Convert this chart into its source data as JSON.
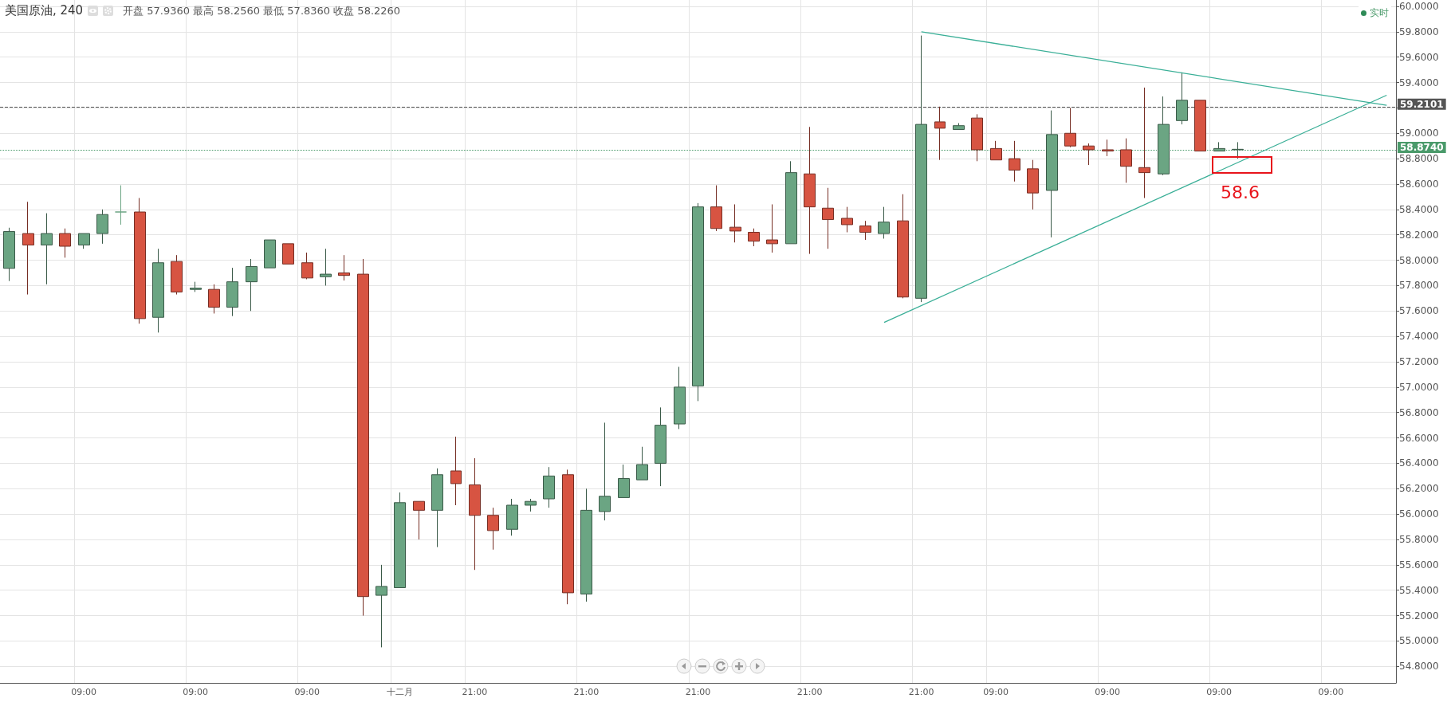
{
  "chart_data": {
    "type": "candlestick",
    "title": "美国原油, 240",
    "subtitle": "开盘 57.9360 最高 58.2560 最低 57.8360 收盘 58.2260",
    "categories": [
      null,
      null,
      null,
      null,
      "09:00",
      null,
      null,
      null,
      null,
      null,
      "09:00",
      null,
      null,
      null,
      null,
      null,
      "09:00",
      null,
      null,
      null,
      null,
      "十二月",
      null,
      null,
      null,
      "21:00",
      null,
      null,
      null,
      null,
      null,
      "21:00",
      null,
      null,
      null,
      null,
      null,
      "21:00",
      null,
      null,
      null,
      null,
      null,
      "21:00",
      null,
      null,
      null,
      null,
      null,
      "21:00",
      null,
      null,
      null,
      "09:00",
      null,
      null,
      null,
      null,
      null,
      "09:00",
      null,
      null,
      null,
      null,
      null,
      "09:00",
      null,
      null,
      null,
      null,
      null,
      "09:00",
      null,
      null,
      null
    ],
    "ohlc": [
      [
        57.936,
        58.256,
        57.836,
        58.226
      ],
      [
        58.21,
        58.46,
        57.73,
        58.12
      ],
      [
        58.12,
        58.37,
        57.81,
        58.21
      ],
      [
        58.21,
        58.25,
        58.02,
        58.11
      ],
      [
        58.12,
        58.21,
        58.09,
        58.21
      ],
      [
        58.21,
        58.4,
        58.13,
        58.36
      ],
      [
        58.38,
        58.59,
        58.28,
        58.38
      ],
      [
        58.38,
        58.49,
        57.5,
        57.54
      ],
      [
        57.55,
        58.09,
        57.43,
        57.98
      ],
      [
        57.99,
        58.04,
        57.73,
        57.75
      ],
      [
        57.77,
        57.83,
        57.75,
        57.78
      ],
      [
        57.77,
        57.81,
        57.58,
        57.63
      ],
      [
        57.63,
        57.94,
        57.56,
        57.83
      ],
      [
        57.83,
        58.01,
        57.6,
        57.95
      ],
      [
        57.94,
        58.16,
        57.94,
        58.16
      ],
      [
        58.13,
        58.13,
        57.97,
        57.97
      ],
      [
        57.98,
        58.06,
        57.85,
        57.86
      ],
      [
        57.87,
        58.09,
        57.8,
        57.89
      ],
      [
        57.9,
        58.04,
        57.84,
        57.88
      ],
      [
        57.89,
        58.01,
        55.2,
        55.35
      ],
      [
        55.36,
        55.6,
        54.95,
        55.43
      ],
      [
        55.42,
        56.17,
        55.42,
        56.09
      ],
      [
        56.1,
        56.1,
        55.8,
        56.03
      ],
      [
        56.03,
        56.36,
        55.74,
        56.31
      ],
      [
        56.34,
        56.61,
        56.07,
        56.24
      ],
      [
        56.23,
        56.44,
        55.56,
        55.99
      ],
      [
        55.99,
        56.05,
        55.72,
        55.87
      ],
      [
        55.88,
        56.12,
        55.83,
        56.07
      ],
      [
        56.07,
        56.12,
        56.02,
        56.1
      ],
      [
        56.12,
        56.37,
        56.05,
        56.3
      ],
      [
        56.31,
        56.35,
        55.29,
        55.38
      ],
      [
        55.37,
        56.2,
        55.31,
        56.03
      ],
      [
        56.02,
        56.72,
        55.95,
        56.14
      ],
      [
        56.13,
        56.39,
        56.13,
        56.28
      ],
      [
        56.27,
        56.53,
        56.27,
        56.39
      ],
      [
        56.4,
        56.84,
        56.22,
        56.7
      ],
      [
        56.71,
        57.16,
        56.67,
        57.0
      ],
      [
        57.01,
        58.45,
        56.89,
        58.42
      ],
      [
        58.42,
        58.59,
        58.23,
        58.25
      ],
      [
        58.26,
        58.44,
        58.14,
        58.23
      ],
      [
        58.22,
        58.25,
        58.11,
        58.15
      ],
      [
        58.16,
        58.44,
        58.06,
        58.13
      ],
      [
        58.13,
        58.78,
        58.13,
        58.69
      ],
      [
        58.68,
        59.05,
        58.05,
        58.42
      ],
      [
        58.41,
        58.57,
        58.09,
        58.32
      ],
      [
        58.33,
        58.42,
        58.22,
        58.28
      ],
      [
        58.27,
        58.31,
        58.16,
        58.22
      ],
      [
        58.21,
        58.42,
        58.17,
        58.3
      ],
      [
        58.31,
        58.52,
        57.7,
        57.71
      ],
      [
        57.7,
        59.77,
        57.67,
        59.07
      ],
      [
        59.09,
        59.21,
        58.79,
        59.04
      ],
      [
        59.03,
        59.08,
        59.03,
        59.06
      ],
      [
        59.12,
        59.15,
        58.78,
        58.87
      ],
      [
        58.88,
        58.94,
        58.79,
        58.79
      ],
      [
        58.8,
        58.94,
        58.62,
        58.71
      ],
      [
        58.72,
        58.79,
        58.4,
        58.53
      ],
      [
        58.55,
        59.18,
        58.18,
        58.99
      ],
      [
        59.0,
        59.2,
        58.89,
        58.9
      ],
      [
        58.9,
        58.92,
        58.75,
        58.87
      ],
      [
        58.87,
        58.95,
        58.82,
        58.86
      ],
      [
        58.87,
        58.96,
        58.61,
        58.74
      ],
      [
        58.73,
        59.36,
        58.49,
        58.69
      ],
      [
        58.68,
        59.29,
        58.67,
        59.07
      ],
      [
        59.1,
        59.48,
        59.07,
        59.26
      ],
      [
        59.26,
        59.26,
        58.86,
        58.86
      ],
      [
        58.86,
        58.93,
        58.86,
        58.88
      ],
      [
        58.87,
        58.93,
        58.8,
        58.874
      ],
      null,
      null,
      null,
      null,
      null,
      null,
      null,
      null
    ],
    "colors": [
      "#6ba583",
      "#d75442",
      "#6ba583",
      "#d75442",
      "#6ba583",
      "#6ba583",
      "#6ba583",
      "#d75442",
      "#6ba583",
      "#d75442",
      "#6ba583",
      "#d75442",
      "#6ba583",
      "#6ba583",
      "#6ba583",
      "#d75442",
      "#d75442",
      "#6ba583",
      "#d75442",
      "#d75442",
      "#6ba583",
      "#6ba583",
      "#d75442",
      "#6ba583",
      "#d75442",
      "#d75442",
      "#d75442",
      "#6ba583",
      "#6ba583",
      "#6ba583",
      "#d75442",
      "#6ba583",
      "#6ba583",
      "#6ba583",
      "#6ba583",
      "#6ba583",
      "#6ba583",
      "#6ba583",
      "#d75442",
      "#d75442",
      "#d75442",
      "#d75442",
      "#6ba583",
      "#d75442",
      "#d75442",
      "#d75442",
      "#d75442",
      "#6ba583",
      "#d75442",
      "#6ba583",
      "#d75442",
      "#6ba583",
      "#d75442",
      "#d75442",
      "#d75442",
      "#d75442",
      "#6ba583",
      "#d75442",
      "#d75442",
      "#d75442",
      "#d75442",
      "#d75442",
      "#6ba583",
      "#6ba583",
      "#d75442",
      "#6ba583",
      "#6ba583",
      null,
      null,
      null,
      null,
      null,
      null,
      null,
      null
    ],
    "series": [
      {
        "type": "line",
        "color": "#3aaf97",
        "values": [
          null,
          null,
          null,
          null,
          null,
          null,
          null,
          null,
          null,
          null,
          null,
          null,
          null,
          null,
          null,
          null,
          null,
          null,
          null,
          null,
          null,
          null,
          null,
          null,
          null,
          null,
          null,
          null,
          null,
          null,
          null,
          null,
          null,
          null,
          null,
          null,
          null,
          null,
          null,
          null,
          null,
          null,
          null,
          null,
          null,
          null,
          null,
          null,
          null,
          59.8,
          null,
          null,
          null,
          null,
          null,
          null,
          null,
          null,
          null,
          null,
          null,
          null,
          null,
          null,
          null,
          null,
          null,
          null,
          null,
          null,
          null,
          null,
          null,
          null,
          59.22
        ]
      },
      {
        "type": "line",
        "color": "#3aaf97",
        "values": [
          null,
          null,
          null,
          null,
          null,
          null,
          null,
          null,
          null,
          null,
          null,
          null,
          null,
          null,
          null,
          null,
          null,
          null,
          null,
          null,
          null,
          null,
          null,
          null,
          null,
          null,
          null,
          null,
          null,
          null,
          null,
          null,
          null,
          null,
          null,
          null,
          null,
          null,
          null,
          null,
          null,
          null,
          null,
          null,
          null,
          null,
          null,
          57.51,
          null,
          null,
          null,
          null,
          null,
          null,
          null,
          null,
          null,
          null,
          null,
          null,
          null,
          null,
          null,
          null,
          null,
          null,
          null,
          null,
          null,
          null,
          null,
          null,
          null,
          null,
          59.3
        ]
      }
    ],
    "ylim": [
      54.67,
      60.05
    ],
    "yticks": [
      {
        "value": 54.8,
        "label": "54.8000"
      },
      {
        "value": 55.0,
        "label": "55.0000"
      },
      {
        "value": 55.2,
        "label": "55.2000"
      },
      {
        "value": 55.4,
        "label": "55.4000"
      },
      {
        "value": 55.6,
        "label": "55.6000"
      },
      {
        "value": 55.8,
        "label": "55.8000"
      },
      {
        "value": 56.0,
        "label": "56.0000"
      },
      {
        "value": 56.2,
        "label": "56.2000"
      },
      {
        "value": 56.4,
        "label": "56.4000"
      },
      {
        "value": 56.6,
        "label": "56.6000"
      },
      {
        "value": 56.8,
        "label": "56.8000"
      },
      {
        "value": 57.0,
        "label": "57.0000"
      },
      {
        "value": 57.2,
        "label": "57.2000"
      },
      {
        "value": 57.4,
        "label": "57.4000"
      },
      {
        "value": 57.6,
        "label": "57.6000"
      },
      {
        "value": 57.8,
        "label": "57.8000"
      },
      {
        "value": 58.0,
        "label": "58.0000"
      },
      {
        "value": 58.2,
        "label": "58.2000"
      },
      {
        "value": 58.4,
        "label": "58.4000"
      },
      {
        "value": 58.6,
        "label": "58.6000"
      },
      {
        "value": 58.8,
        "label": "58.8000"
      },
      {
        "value": 59.0,
        "label": "59.0000"
      },
      {
        "value": 59.2,
        "label": null
      },
      {
        "value": 59.4,
        "label": "59.4000"
      },
      {
        "value": 59.6,
        "label": "59.6000"
      },
      {
        "value": 59.8,
        "label": "59.8000"
      },
      {
        "value": 60.0,
        "label": "60.0000"
      }
    ],
    "ref_lines": [
      {
        "axis": "y",
        "value": 59.2101,
        "label": "59.2101",
        "color": "#555555",
        "line_style": "dashed"
      },
      {
        "axis": "y",
        "value": 58.874,
        "label": "58.8740",
        "color": "#4a9a6a",
        "line_style": "dotted"
      }
    ],
    "annotations": [
      "实时",
      "58.6"
    ],
    "grid": true,
    "marker": "none"
  }
}
